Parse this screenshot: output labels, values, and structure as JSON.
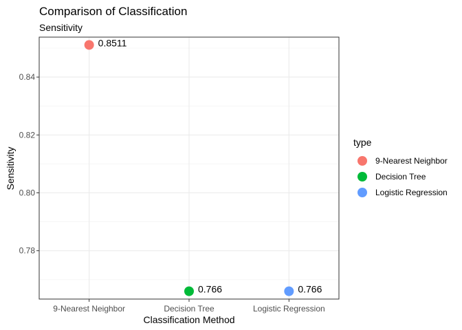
{
  "chart_data": {
    "type": "scatter",
    "title": "Comparison of Classification",
    "subtitle": "Sensitivity",
    "xlabel": "Classification Method",
    "ylabel": "Sensitivity",
    "categories": [
      "9-Nearest Neighbor",
      "Decision Tree",
      "Logistic Regression"
    ],
    "ylim": [
      0.7633,
      0.8538
    ],
    "yticks": [
      0.78,
      0.8,
      0.82,
      0.84
    ],
    "ytick_labels": [
      "0.78",
      "0.80",
      "0.82",
      "0.84"
    ],
    "grid": true,
    "legend_placement": "right",
    "series": [
      {
        "name": "9-Nearest Neighbor",
        "x": "9-Nearest Neighbor",
        "value": 0.8511,
        "label": "0.8511",
        "color": "#F8766D"
      },
      {
        "name": "Decision Tree",
        "x": "Decision Tree",
        "value": 0.766,
        "label": "0.766",
        "color": "#00BA38"
      },
      {
        "name": "Logistic Regression",
        "x": "Logistic Regression",
        "value": 0.766,
        "label": "0.766",
        "color": "#619CFF"
      }
    ],
    "legend": {
      "title": "type",
      "items": [
        "9-Nearest Neighbor",
        "Decision Tree",
        "Logistic Regression"
      ]
    }
  }
}
